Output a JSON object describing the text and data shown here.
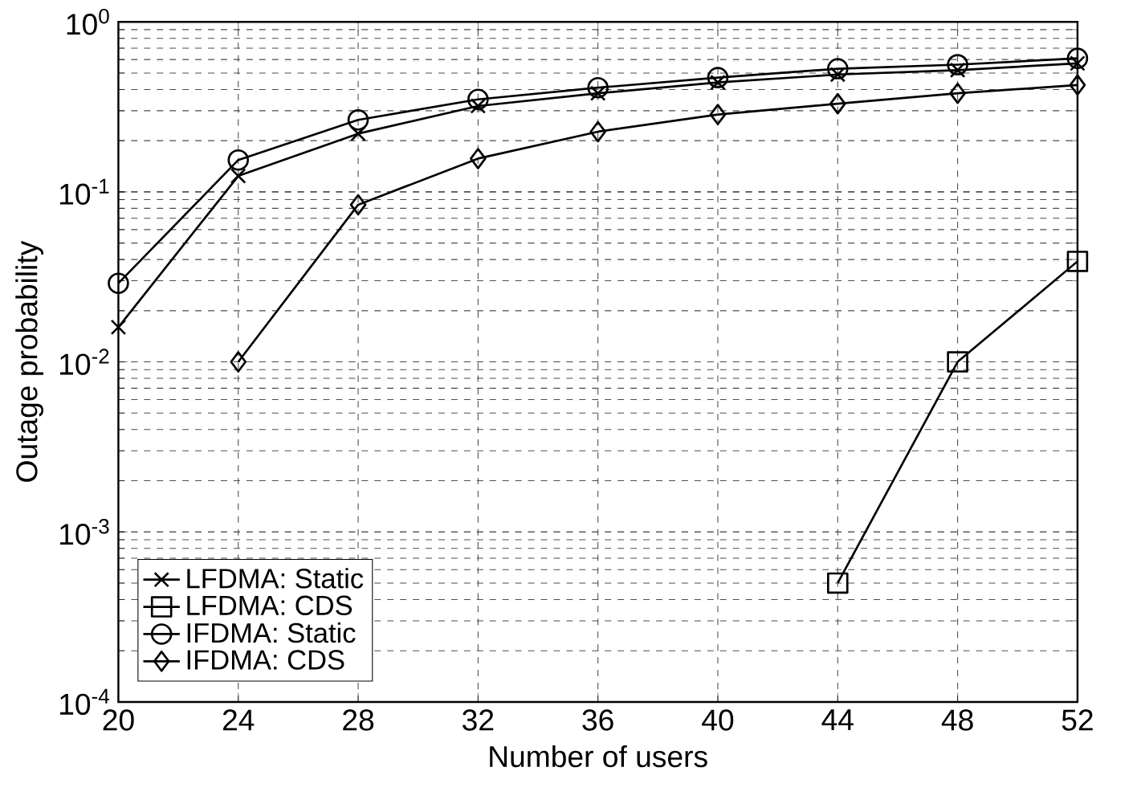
{
  "chart_data": {
    "type": "line",
    "xlabel": "Number of users",
    "ylabel": "Outage probability",
    "log": "y",
    "grid": true,
    "legend": "bottom left",
    "line_style": "solid",
    "x": [
      20,
      24,
      28,
      32,
      36,
      40,
      44,
      48,
      52
    ],
    "xlim": [
      20,
      52
    ],
    "xticks": [
      20,
      24,
      28,
      32,
      36,
      40,
      44,
      48,
      52
    ],
    "ylim": [
      0.0001,
      1
    ],
    "yticks": [
      {
        "value": 0.0001,
        "label": "10$^{-4}$"
      },
      {
        "value": 0.001,
        "label": "10$^{-3}$"
      },
      {
        "value": 0.01,
        "label": "10$^{-2}$"
      },
      {
        "value": 0.1,
        "label": "10$^{-1}$"
      },
      {
        "value": 1,
        "label": "10$^{0}$"
      }
    ],
    "series": [
      {
        "name": "LFDMA: Static",
        "color": "#000000",
        "marker": "cross",
        "values": [
          0.016,
          0.124,
          0.22,
          0.32,
          0.38,
          0.44,
          0.49,
          0.52,
          0.57
        ]
      },
      {
        "name": "LFDMA: CDS",
        "color": "#000000",
        "marker": "square",
        "values": [
          null,
          null,
          null,
          null,
          null,
          null,
          0.0005,
          0.01,
          0.039
        ]
      },
      {
        "name": "IFDMA: Static",
        "color": "#000000",
        "marker": "circle",
        "values": [
          0.029,
          0.154,
          0.265,
          0.35,
          0.41,
          0.47,
          0.53,
          0.56,
          0.61
        ]
      },
      {
        "name": "IFDMA: CDS",
        "color": "#000000",
        "marker": "diamond",
        "values": [
          null,
          0.01,
          0.084,
          0.157,
          0.226,
          0.285,
          0.33,
          0.38,
          0.425
        ]
      }
    ]
  }
}
